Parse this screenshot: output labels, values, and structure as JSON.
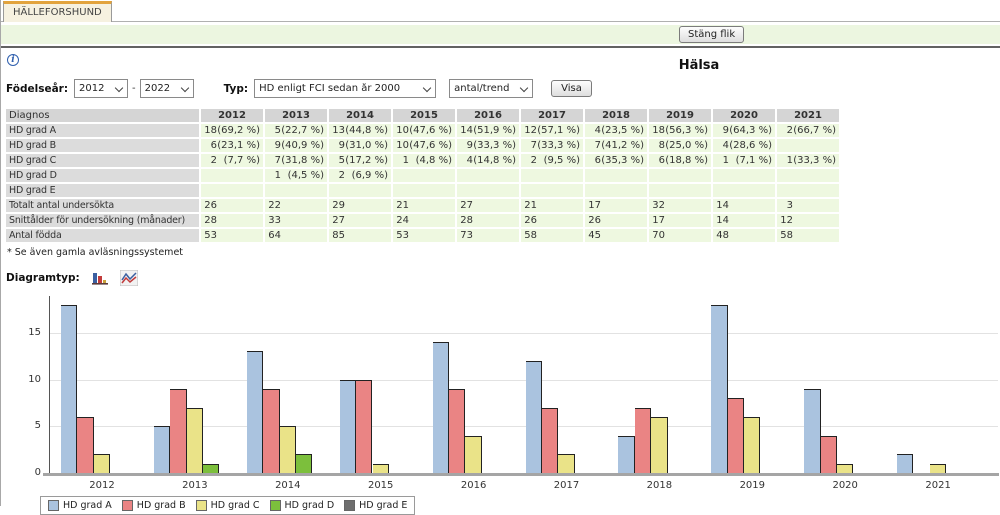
{
  "tab": {
    "label": "HÄLLEFORSHUND"
  },
  "toolbar": {
    "close_tab_label": "Stäng flik"
  },
  "page": {
    "heading": "Hälsa"
  },
  "icons": {
    "info": "i",
    "diagram_bar": "bar-chart",
    "diagram_line": "line-chart"
  },
  "colors": {
    "tab_accent": "#e2a33d",
    "green_bar": "#ecf6e0",
    "table_header_bg": "#d5d5d5",
    "table_label_bg": "#dcdcdc",
    "table_cell_bg": "#eef8e0"
  },
  "filters": {
    "birth_year_label": "Födelseår:",
    "year_from": "2012",
    "year_to": "2022",
    "range_separator": "-",
    "type_label": "Typ:",
    "type_value": "HD enligt FCI sedan år 2000",
    "display_value": "antal/trend",
    "show_button": "Visa"
  },
  "table": {
    "diagnosis_header": "Diagnos",
    "years": [
      "2012",
      "2013",
      "2014",
      "2015",
      "2016",
      "2017",
      "2018",
      "2019",
      "2020",
      "2021"
    ],
    "diagnosis_rows": [
      {
        "label": "HD grad A",
        "cells": [
          {
            "count": "18",
            "pct": "(69,2 %)"
          },
          {
            "count": "5",
            "pct": "(22,7 %)"
          },
          {
            "count": "13",
            "pct": "(44,8 %)"
          },
          {
            "count": "10",
            "pct": "(47,6 %)"
          },
          {
            "count": "14",
            "pct": "(51,9 %)"
          },
          {
            "count": "12",
            "pct": "(57,1 %)"
          },
          {
            "count": "4",
            "pct": "(23,5 %)"
          },
          {
            "count": "18",
            "pct": "(56,3 %)"
          },
          {
            "count": "9",
            "pct": "(64,3 %)"
          },
          {
            "count": "2",
            "pct": "(66,7 %)"
          }
        ]
      },
      {
        "label": "HD grad B",
        "cells": [
          {
            "count": "6",
            "pct": "(23,1 %)"
          },
          {
            "count": "9",
            "pct": "(40,9 %)"
          },
          {
            "count": "9",
            "pct": "(31,0 %)"
          },
          {
            "count": "10",
            "pct": "(47,6 %)"
          },
          {
            "count": "9",
            "pct": "(33,3 %)"
          },
          {
            "count": "7",
            "pct": "(33,3 %)"
          },
          {
            "count": "7",
            "pct": "(41,2 %)"
          },
          {
            "count": "8",
            "pct": "(25,0 %)"
          },
          {
            "count": "4",
            "pct": "(28,6 %)"
          },
          {
            "count": "",
            "pct": ""
          }
        ]
      },
      {
        "label": "HD grad C",
        "cells": [
          {
            "count": "2",
            "pct": "(7,7 %)"
          },
          {
            "count": "7",
            "pct": "(31,8 %)"
          },
          {
            "count": "5",
            "pct": "(17,2 %)"
          },
          {
            "count": "1",
            "pct": "(4,8 %)"
          },
          {
            "count": "4",
            "pct": "(14,8 %)"
          },
          {
            "count": "2",
            "pct": "(9,5 %)"
          },
          {
            "count": "6",
            "pct": "(35,3 %)"
          },
          {
            "count": "6",
            "pct": "(18,8 %)"
          },
          {
            "count": "1",
            "pct": "(7,1 %)"
          },
          {
            "count": "1",
            "pct": "(33,3 %)"
          }
        ]
      },
      {
        "label": "HD grad D",
        "cells": [
          {
            "count": "",
            "pct": ""
          },
          {
            "count": "1",
            "pct": "(4,5 %)"
          },
          {
            "count": "2",
            "pct": "(6,9 %)"
          },
          {
            "count": "",
            "pct": ""
          },
          {
            "count": "",
            "pct": ""
          },
          {
            "count": "",
            "pct": ""
          },
          {
            "count": "",
            "pct": ""
          },
          {
            "count": "",
            "pct": ""
          },
          {
            "count": "",
            "pct": ""
          },
          {
            "count": "",
            "pct": ""
          }
        ]
      },
      {
        "label": "HD grad E",
        "cells": [
          {
            "count": "",
            "pct": ""
          },
          {
            "count": "",
            "pct": ""
          },
          {
            "count": "",
            "pct": ""
          },
          {
            "count": "",
            "pct": ""
          },
          {
            "count": "",
            "pct": ""
          },
          {
            "count": "",
            "pct": ""
          },
          {
            "count": "",
            "pct": ""
          },
          {
            "count": "",
            "pct": ""
          },
          {
            "count": "",
            "pct": ""
          },
          {
            "count": "",
            "pct": ""
          }
        ]
      }
    ],
    "summary_rows": [
      {
        "label": "Totalt antal undersökta",
        "values": [
          "26",
          "22",
          "29",
          "21",
          "27",
          "21",
          "17",
          "32",
          "14",
          "3"
        ]
      },
      {
        "label": "Snittålder för undersökning (månader)",
        "values": [
          "28",
          "33",
          "27",
          "24",
          "28",
          "26",
          "26",
          "17",
          "14",
          "12"
        ]
      },
      {
        "label": "Antal födda",
        "values": [
          "53",
          "64",
          "85",
          "53",
          "73",
          "58",
          "45",
          "70",
          "48",
          "58"
        ]
      }
    ],
    "footnote": "* Se även gamla avläsningssystemet"
  },
  "diagram": {
    "type_label": "Diagramtyp:"
  },
  "chart_data": {
    "type": "bar",
    "categories": [
      "2012",
      "2013",
      "2014",
      "2015",
      "2016",
      "2017",
      "2018",
      "2019",
      "2020",
      "2021"
    ],
    "series": [
      {
        "name": "HD grad A",
        "color": "#aac3df",
        "values": [
          18,
          5,
          13,
          10,
          14,
          12,
          4,
          18,
          9,
          2
        ]
      },
      {
        "name": "HD grad B",
        "color": "#ea8484",
        "values": [
          6,
          9,
          9,
          10,
          9,
          7,
          7,
          8,
          4,
          0
        ]
      },
      {
        "name": "HD grad C",
        "color": "#eae388",
        "values": [
          2,
          7,
          5,
          1,
          4,
          2,
          6,
          6,
          1,
          1
        ]
      },
      {
        "name": "HD grad D",
        "color": "#7cbf3c",
        "values": [
          0,
          1,
          2,
          0,
          0,
          0,
          0,
          0,
          0,
          0
        ]
      },
      {
        "name": "HD grad E",
        "color": "#6e6e6e",
        "values": [
          0,
          0,
          0,
          0,
          0,
          0,
          0,
          0,
          0,
          0
        ]
      }
    ],
    "title": "",
    "xlabel": "",
    "ylabel": "",
    "ylim": [
      0,
      20
    ],
    "yticks": [
      0,
      5,
      10,
      15
    ],
    "grid": true,
    "legend_position": "bottom-left"
  }
}
